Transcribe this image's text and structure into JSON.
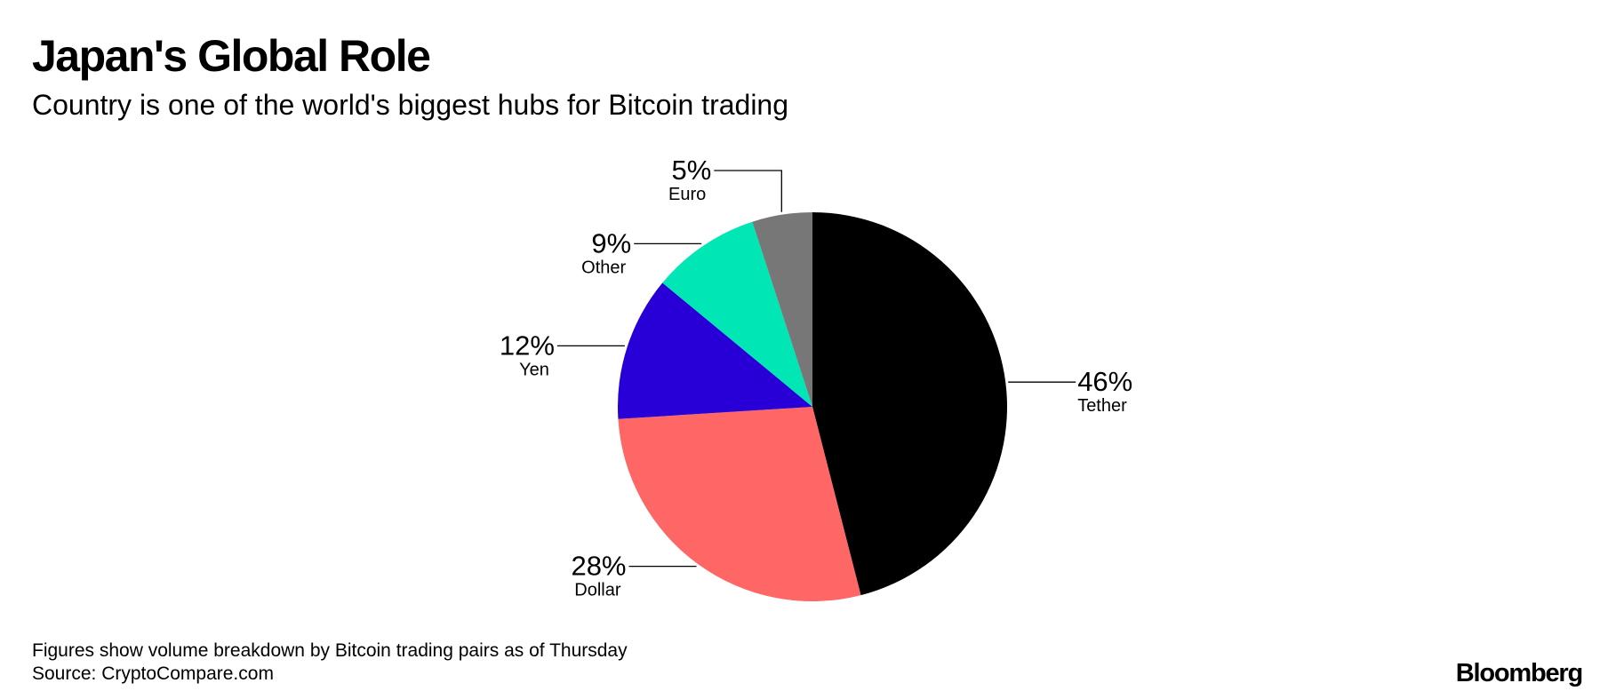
{
  "header": {
    "title": "Japan's Global Role",
    "subtitle": "Country is one of the world's biggest hubs for Bitcoin trading"
  },
  "footer": {
    "note": "Figures show volume breakdown by Bitcoin trading pairs as of Thursday",
    "source": "Source: CryptoCompare.com",
    "brand": "Bloomberg"
  },
  "chart_data": {
    "type": "pie",
    "title": "Japan's Global Role",
    "subtitle": "Country is one of the world's biggest hubs for Bitcoin trading",
    "slices": [
      {
        "label": "Tether",
        "value": 46,
        "display": "46%",
        "color": "#000000",
        "label_side": "right"
      },
      {
        "label": "Dollar",
        "value": 28,
        "display": "28%",
        "color": "#ff6666",
        "label_side": "left"
      },
      {
        "label": "Yen",
        "value": 12,
        "display": "12%",
        "color": "#2800d7",
        "label_side": "left"
      },
      {
        "label": "Other",
        "value": 9,
        "display": "9%",
        "color": "#00e6b5",
        "label_side": "left"
      },
      {
        "label": "Euro",
        "value": 5,
        "display": "5%",
        "color": "#777777",
        "label_side": "left"
      }
    ],
    "start_angle": "12 o'clock",
    "direction": "clockwise"
  }
}
